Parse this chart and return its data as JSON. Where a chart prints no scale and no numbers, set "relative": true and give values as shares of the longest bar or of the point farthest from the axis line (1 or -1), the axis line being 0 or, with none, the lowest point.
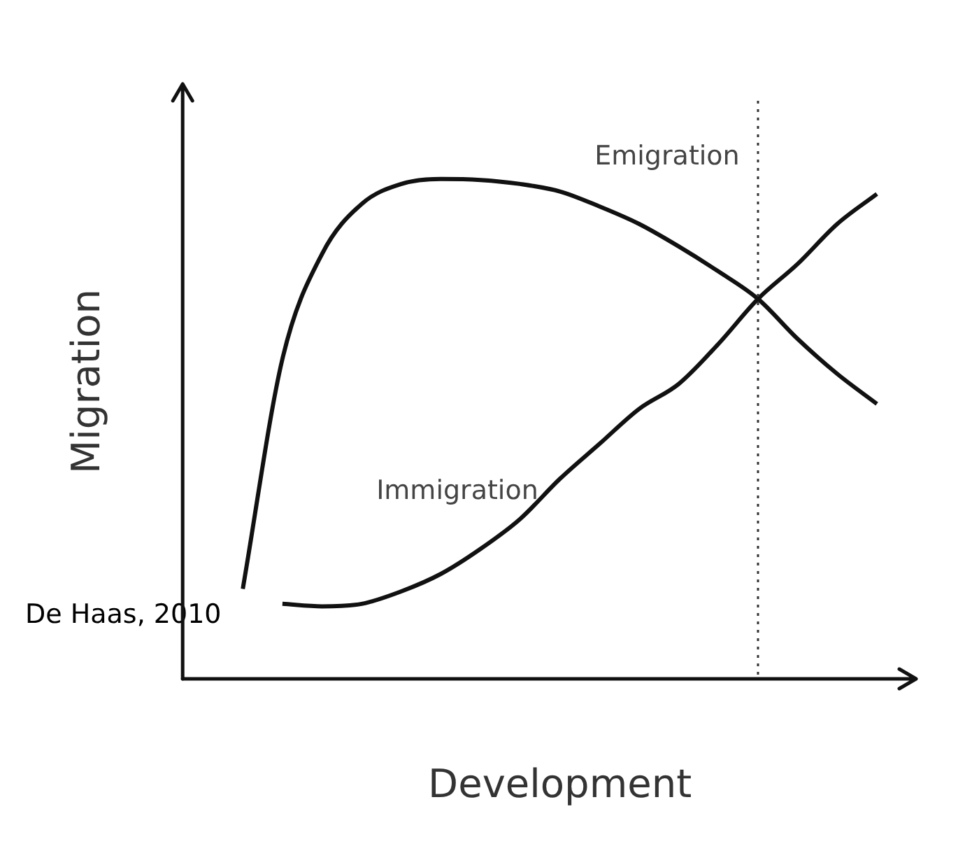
{
  "chart_data": {
    "type": "line",
    "relative": true,
    "xlabel": "Development",
    "ylabel": "Migration",
    "grid": false,
    "legend": false,
    "marker": "none",
    "line_style": "solid",
    "categories": [
      null,
      null,
      null,
      null,
      null,
      null,
      null,
      null,
      null,
      null,
      null,
      null,
      null,
      null,
      null,
      null,
      null
    ],
    "series": [
      {
        "name": "Emigration",
        "color": "#111111",
        "values": [
          0.18,
          0.64,
          0.85,
          0.95,
          0.99,
          1,
          0.998,
          0.99,
          0.975,
          0.945,
          0.91,
          0.865,
          0.815,
          0.76,
          0.68,
          0.61,
          0.55
        ]
      },
      {
        "name": "Immigration",
        "color": "#111111",
        "values": [
          null,
          0.15,
          0.145,
          0.15,
          0.175,
          0.21,
          0.26,
          0.32,
          0.4,
          0.47,
          0.54,
          0.59,
          0.67,
          0.76,
          0.83,
          0.91,
          0.97
        ]
      }
    ],
    "annotations": [
      "De Haas, 2010"
    ]
  }
}
